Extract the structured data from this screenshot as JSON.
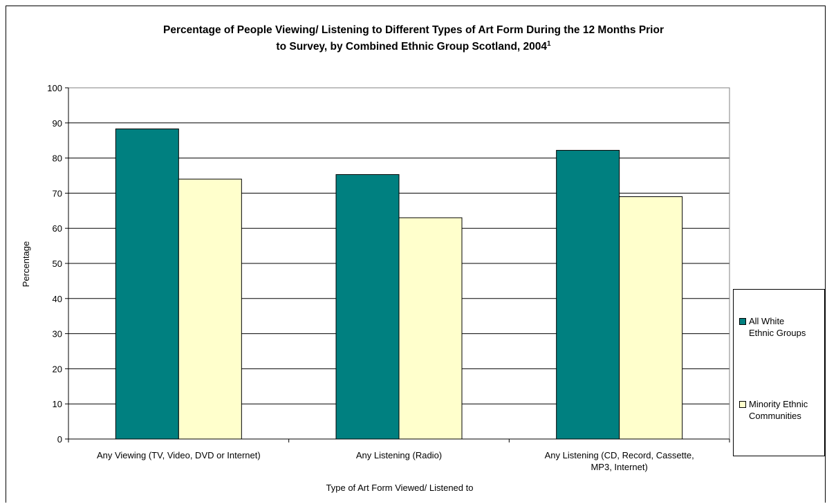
{
  "chart_data": {
    "type": "bar",
    "title": "Percentage of People Viewing/ Listening to Different Types of Art Form During the 12 Months Prior to Survey, by Combined Ethnic Group Scotland, 2004",
    "title_line1": "Percentage of People Viewing/ Listening to Different Types of Art Form During the 12 Months Prior",
    "title_line2": "to Survey, by Combined Ethnic Group Scotland, 2004",
    "title_superscript": "1",
    "xlabel": "Type of Art Form Viewed/ Listened to",
    "ylabel": "Percentage",
    "ylim": [
      0,
      100
    ],
    "yticks": [
      "0",
      "10",
      "20",
      "30",
      "40",
      "50",
      "60",
      "70",
      "80",
      "90",
      "100"
    ],
    "grid": true,
    "legend_position": "right",
    "categories": [
      [
        "Any Viewing (TV, Video, DVD or Internet)"
      ],
      [
        "Any Listening (Radio)"
      ],
      [
        "Any Listening (CD, Record, Cassette,",
        "MP3, Internet)"
      ]
    ],
    "series": [
      {
        "name": "All White Ethnic Groups",
        "name_lines": [
          "All White",
          "Ethnic Groups"
        ],
        "color": "#008080",
        "values": [
          88.3,
          75.3,
          82.2
        ]
      },
      {
        "name": "Minority Ethnic Communities",
        "name_lines": [
          "Minority Ethnic",
          "Communities"
        ],
        "color": "#FFFFCC",
        "values": [
          74.0,
          63.0,
          69.0
        ]
      }
    ]
  }
}
